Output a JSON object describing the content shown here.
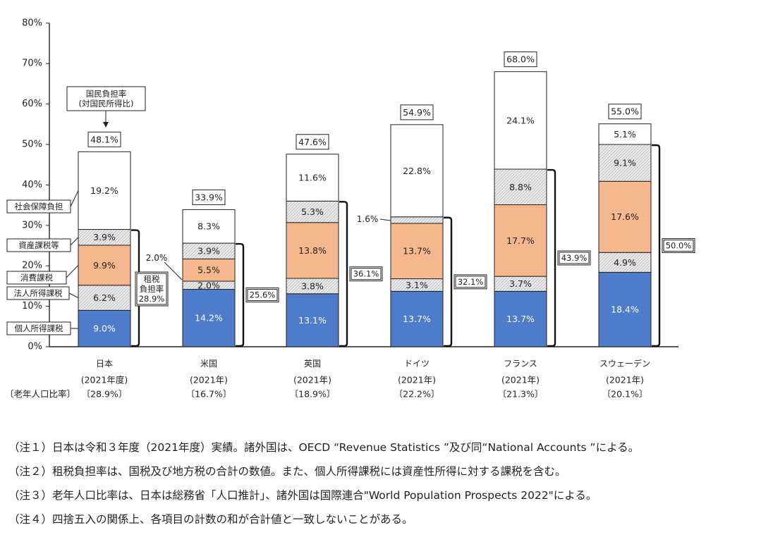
{
  "chart_data": {
    "type": "stacked-bar",
    "title": "",
    "ylim": [
      0,
      80
    ],
    "y_ticks": [
      "0%",
      "10%",
      "20%",
      "30%",
      "40%",
      "50%",
      "60%",
      "70%",
      "80%"
    ],
    "segments": [
      "個人所得課税",
      "法人所得課税",
      "消費課税",
      "資産課税等",
      "社会保障負担"
    ],
    "segment_colors": [
      "#4e7ccb",
      "#dcdcdc",
      "#f5b78d",
      "#d8d8d8",
      "#ffffff"
    ],
    "countries": [
      {
        "name": "日本",
        "year": "(2021年度)",
        "elderly_ratio": "〔28.9%〕",
        "values": [
          9.0,
          6.2,
          9.9,
          3.9,
          19.2
        ],
        "labels": [
          "9.0%",
          "6.2%",
          "9.9%",
          "3.9%",
          "19.2%"
        ],
        "total": "48.1%",
        "tax_burden": "28.9%"
      },
      {
        "name": "米国",
        "year": "(2021年)",
        "elderly_ratio": "〔16.7%〕",
        "values": [
          14.2,
          2.0,
          5.5,
          3.9,
          8.3
        ],
        "labels": [
          "14.2%",
          "2.0%",
          "5.5%",
          "3.9%",
          "8.3%"
        ],
        "total": "33.9%",
        "tax_burden": "25.6%"
      },
      {
        "name": "英国",
        "year": "(2021年)",
        "elderly_ratio": "〔18.9%〕",
        "values": [
          13.1,
          3.8,
          13.8,
          5.3,
          11.6
        ],
        "labels": [
          "13.1%",
          "3.8%",
          "13.8%",
          "5.3%",
          "11.6%"
        ],
        "total": "47.6%",
        "tax_burden": "36.1%"
      },
      {
        "name": "ドイツ",
        "year": "(2021年)",
        "elderly_ratio": "〔22.2%〕",
        "values": [
          13.7,
          3.1,
          13.7,
          1.6,
          22.8
        ],
        "labels": [
          "13.7%",
          "3.1%",
          "13.7%",
          "1.6%",
          "22.8%"
        ],
        "total": "54.9%",
        "tax_burden": "32.1%"
      },
      {
        "name": "フランス",
        "year": "(2021年)",
        "elderly_ratio": "〔21.3%〕",
        "values": [
          13.7,
          3.7,
          17.7,
          8.8,
          24.1
        ],
        "labels": [
          "13.7%",
          "3.7%",
          "17.7%",
          "8.8%",
          "24.1%"
        ],
        "total": "68.0%",
        "tax_burden": "43.9%"
      },
      {
        "name": "スウェーデン",
        "year": "(2021年)",
        "elderly_ratio": "〔20.1%〕",
        "values": [
          18.4,
          4.9,
          17.6,
          9.1,
          5.1
        ],
        "labels": [
          "18.4%",
          "4.9%",
          "17.6%",
          "9.1%",
          "5.1%"
        ],
        "total": "55.0%",
        "tax_burden": "50.0%"
      }
    ],
    "annotations": {
      "national_burden_label": [
        "国民負担率",
        "(対国民所得比)"
      ],
      "tax_burden_label": [
        "租税",
        "負担率"
      ],
      "elderly_ratio_label": "〔老年人口比率〕"
    }
  },
  "notes": [
    "（注１）日本は令和３年度（2021年度）実績。諸外国は、OECD “Revenue Statistics ”及び同“National Accounts ”による。",
    "（注２）租税負担率は、国税及び地方税の合計の数値。また、個人所得課税には資産性所得に対する課税を含む。",
    "（注３）老年人口比率は、日本は総務省「人口推計」、諸外国は国際連合\"World Population Prospects 2022\"による。",
    "（注４）四捨五入の関係上、各項目の計数の和が合計値と一致しないことがある。"
  ]
}
